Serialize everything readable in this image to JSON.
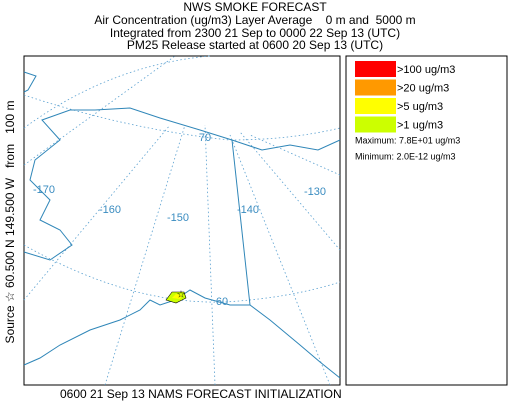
{
  "header": {
    "title": "NWS SMOKE FORECAST",
    "line1": "Air Concentration (ug/m3) Layer Average    0 m and  5000 m",
    "line2": "Integrated from 2300 21 Sep to 0000 22 Sep 13 (UTC)",
    "line3": "PM25 Release started at 0600 20 Sep 13 (UTC)"
  },
  "side_label": "Source ☆ 60.500 N 149.500 W   from   100 m",
  "footer": "0600 21 Sep 13 NAMS FORECAST INITIALIZATION",
  "map": {
    "labels": [
      "70",
      "-170",
      "-160",
      "-150",
      "-140",
      "-130",
      "60"
    ]
  },
  "legend": {
    "items": [
      {
        "label": ">100 ug/m3",
        "color": "#ff0000"
      },
      {
        "label": ">20 ug/m3",
        "color": "#ff9900"
      },
      {
        "label": ">5 ug/m3",
        "color": "#ffff00"
      },
      {
        "label": ">1 ug/m3",
        "color": "#ccff00"
      }
    ],
    "maximum": "Maximum: 7.8E+01 ug/m3",
    "minimum": "Minimum: 2.0E-12 ug/m3"
  }
}
